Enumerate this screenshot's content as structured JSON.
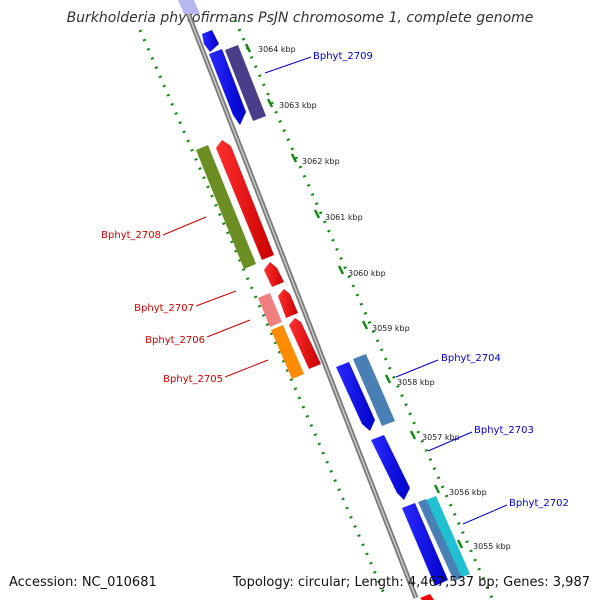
{
  "title": "Burkholderia phytofirmans PsJN chromosome 1, complete genome",
  "footer": {
    "accession": "Accession: NC_010681",
    "genome_info": "Topology: circular; Length: 4,467,537 bp; Genes: 3,987"
  },
  "ticks": [
    "3064 kbp",
    "3063 kbp",
    "3062 kbp",
    "3061 kbp",
    "3060 kbp",
    "3059 kbp",
    "3058 kbp",
    "3057 kbp",
    "3056 kbp",
    "3055 kbp"
  ],
  "genes": {
    "Bphyt_2709": "Bphyt_2709",
    "Bphyt_2708": "Bphyt_2708",
    "Bphyt_2707": "Bphyt_2707",
    "Bphyt_2706": "Bphyt_2706",
    "Bphyt_2705": "Bphyt_2705",
    "Bphyt_2704": "Bphyt_2704",
    "Bphyt_2703": "Bphyt_2703",
    "Bphyt_2702": "Bphyt_2702"
  },
  "colors": {
    "forward_label": "#0000cc",
    "reverse_label": "#cc0000",
    "backbone": "#888888",
    "dotted_guides": "#138a13",
    "blue_gene": "#1010ee",
    "red_gene": "#ee0000",
    "olive_gene": "#6b8e23",
    "orange_gene": "#ff8c00",
    "pink_gene": "#f08080",
    "steel_gene": "#4a7fb5",
    "navy_gene": "#4a3e8a",
    "cyan_gene": "#20c0d0"
  }
}
